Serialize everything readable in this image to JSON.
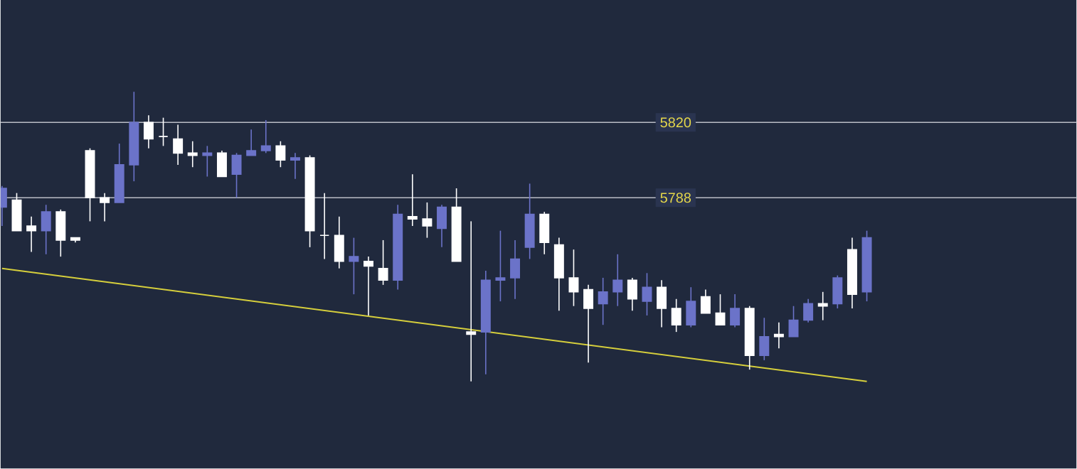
{
  "chart_data": {
    "type": "candlestick",
    "categories": [
      null,
      null,
      null,
      null,
      null,
      null,
      null,
      null,
      null,
      null,
      null,
      null,
      null,
      null,
      null,
      null,
      null,
      null,
      null,
      null,
      null,
      null,
      null,
      null,
      null,
      null,
      null,
      null,
      null,
      null,
      null,
      null,
      null,
      null,
      null,
      null,
      null,
      null,
      null,
      null,
      null,
      null,
      null,
      null,
      null,
      null,
      null,
      null,
      null,
      null,
      null,
      null,
      null,
      null,
      null,
      null,
      null,
      null,
      null,
      null
    ],
    "ohlc": [
      [
        5784,
        5793,
        5776,
        5792
      ],
      [
        5787,
        5790,
        5774,
        5774
      ],
      [
        5776,
        5780,
        5765,
        5774
      ],
      [
        5774,
        5785,
        5764,
        5782
      ],
      [
        5782,
        5783,
        5763,
        5770
      ],
      [
        5771,
        5771,
        5769,
        5770
      ],
      [
        5808,
        5809,
        5778,
        5788
      ],
      [
        5788,
        5790,
        5778,
        5786
      ],
      [
        5786,
        5811,
        5786,
        5802
      ],
      [
        5802,
        5833,
        5795,
        5820
      ],
      [
        5820,
        5823,
        5809,
        5813
      ],
      [
        5814,
        5822,
        5810,
        5814
      ],
      [
        5813,
        5819,
        5802,
        5807
      ],
      [
        5807,
        5812,
        5801,
        5806
      ],
      [
        5806,
        5810,
        5797,
        5807
      ],
      [
        5807,
        5808,
        5797,
        5797
      ],
      [
        5798,
        5807,
        5788,
        5806
      ],
      [
        5806,
        5817,
        5806,
        5808
      ],
      [
        5808,
        5821,
        5807,
        5810
      ],
      [
        5810,
        5812,
        5801,
        5804
      ],
      [
        5804,
        5807,
        5796,
        5805
      ],
      [
        5805,
        5806,
        5767,
        5774
      ],
      [
        5772,
        5790,
        5762,
        5772
      ],
      [
        5772,
        5780,
        5758,
        5761
      ],
      [
        5761,
        5771,
        5747,
        5763
      ],
      [
        5761,
        5763,
        5738,
        5759
      ],
      [
        5758,
        5770,
        5751,
        5753
      ],
      [
        5753,
        5785,
        5749,
        5781
      ],
      [
        5780,
        5798,
        5776,
        5779
      ],
      [
        5779,
        5786,
        5771,
        5776
      ],
      [
        5775,
        5785,
        5767,
        5784
      ],
      [
        5784,
        5792,
        5761,
        5761
      ],
      [
        5731,
        5778,
        5710,
        5730
      ],
      [
        5731,
        5757,
        5713,
        5753
      ],
      [
        5753,
        5774,
        5744,
        5754
      ],
      [
        5754,
        5770,
        5745,
        5762
      ],
      [
        5767,
        5794,
        5762,
        5781
      ],
      [
        5781,
        5782,
        5764,
        5769
      ],
      [
        5768,
        5771,
        5740,
        5754
      ],
      [
        5754,
        5766,
        5742,
        5748
      ],
      [
        5749,
        5751,
        5718,
        5741
      ],
      [
        5743,
        5754,
        5734,
        5748
      ],
      [
        5748,
        5764,
        5742,
        5753
      ],
      [
        5753,
        5754,
        5740,
        5745
      ],
      [
        5744,
        5756,
        5738,
        5750
      ],
      [
        5750,
        5753,
        5733,
        5741
      ],
      [
        5741,
        5745,
        5731,
        5734
      ],
      [
        5734,
        5750,
        5733,
        5744
      ],
      [
        5746,
        5749,
        5739,
        5739
      ],
      [
        5739,
        5747,
        5734,
        5734
      ],
      [
        5734,
        5747,
        5733,
        5741
      ],
      [
        5741,
        5742,
        5715,
        5721
      ],
      [
        5721,
        5737,
        5719,
        5729
      ],
      [
        5730,
        5735,
        5724,
        5729
      ],
      [
        5729,
        5742,
        5729,
        5736
      ],
      [
        5736,
        5745,
        5735,
        5743
      ],
      [
        5743,
        5748,
        5736,
        5742
      ],
      [
        5743,
        5755,
        5741,
        5754
      ],
      [
        5766,
        5771,
        5741,
        5747
      ],
      [
        5748,
        5774,
        5744,
        5771
      ]
    ],
    "colors": [
      "#6b73c9",
      "#ffffff",
      "#ffffff",
      "#6b73c9",
      "#ffffff",
      "#ffffff",
      "#ffffff",
      "#ffffff",
      "#6b73c9",
      "#6b73c9",
      "#ffffff",
      "#ffffff",
      "#ffffff",
      "#ffffff",
      "#6b73c9",
      "#ffffff",
      "#6b73c9",
      "#6b73c9",
      "#6b73c9",
      "#ffffff",
      "#6b73c9",
      "#ffffff",
      "#ffffff",
      "#ffffff",
      "#6b73c9",
      "#ffffff",
      "#ffffff",
      "#6b73c9",
      "#ffffff",
      "#ffffff",
      "#6b73c9",
      "#ffffff",
      "#ffffff",
      "#6b73c9",
      "#6b73c9",
      "#6b73c9",
      "#6b73c9",
      "#ffffff",
      "#ffffff",
      "#ffffff",
      "#ffffff",
      "#6b73c9",
      "#6b73c9",
      "#ffffff",
      "#6b73c9",
      "#ffffff",
      "#ffffff",
      "#6b73c9",
      "#ffffff",
      "#ffffff",
      "#6b73c9",
      "#ffffff",
      "#6b73c9",
      "#ffffff",
      "#6b73c9",
      "#6b73c9",
      "#ffffff",
      "#6b73c9",
      "#ffffff",
      "#6b73c9"
    ],
    "series": [
      {
        "type": "line",
        "values": [
          5758,
          null,
          null,
          null,
          null,
          null,
          null,
          null,
          null,
          null,
          null,
          null,
          null,
          null,
          null,
          null,
          null,
          null,
          null,
          null,
          null,
          null,
          null,
          null,
          null,
          null,
          null,
          null,
          null,
          null,
          null,
          null,
          null,
          null,
          null,
          null,
          null,
          null,
          null,
          null,
          null,
          null,
          null,
          null,
          null,
          null,
          null,
          null,
          null,
          null,
          null,
          null,
          null,
          null,
          null,
          null,
          null,
          null,
          null,
          5710
        ],
        "color": "#d6cf3c"
      }
    ],
    "ylim": [
      5673,
      5872
    ],
    "yticks": [
      5788,
      5820
    ],
    "grid": "y",
    "tick_labels": "y"
  }
}
